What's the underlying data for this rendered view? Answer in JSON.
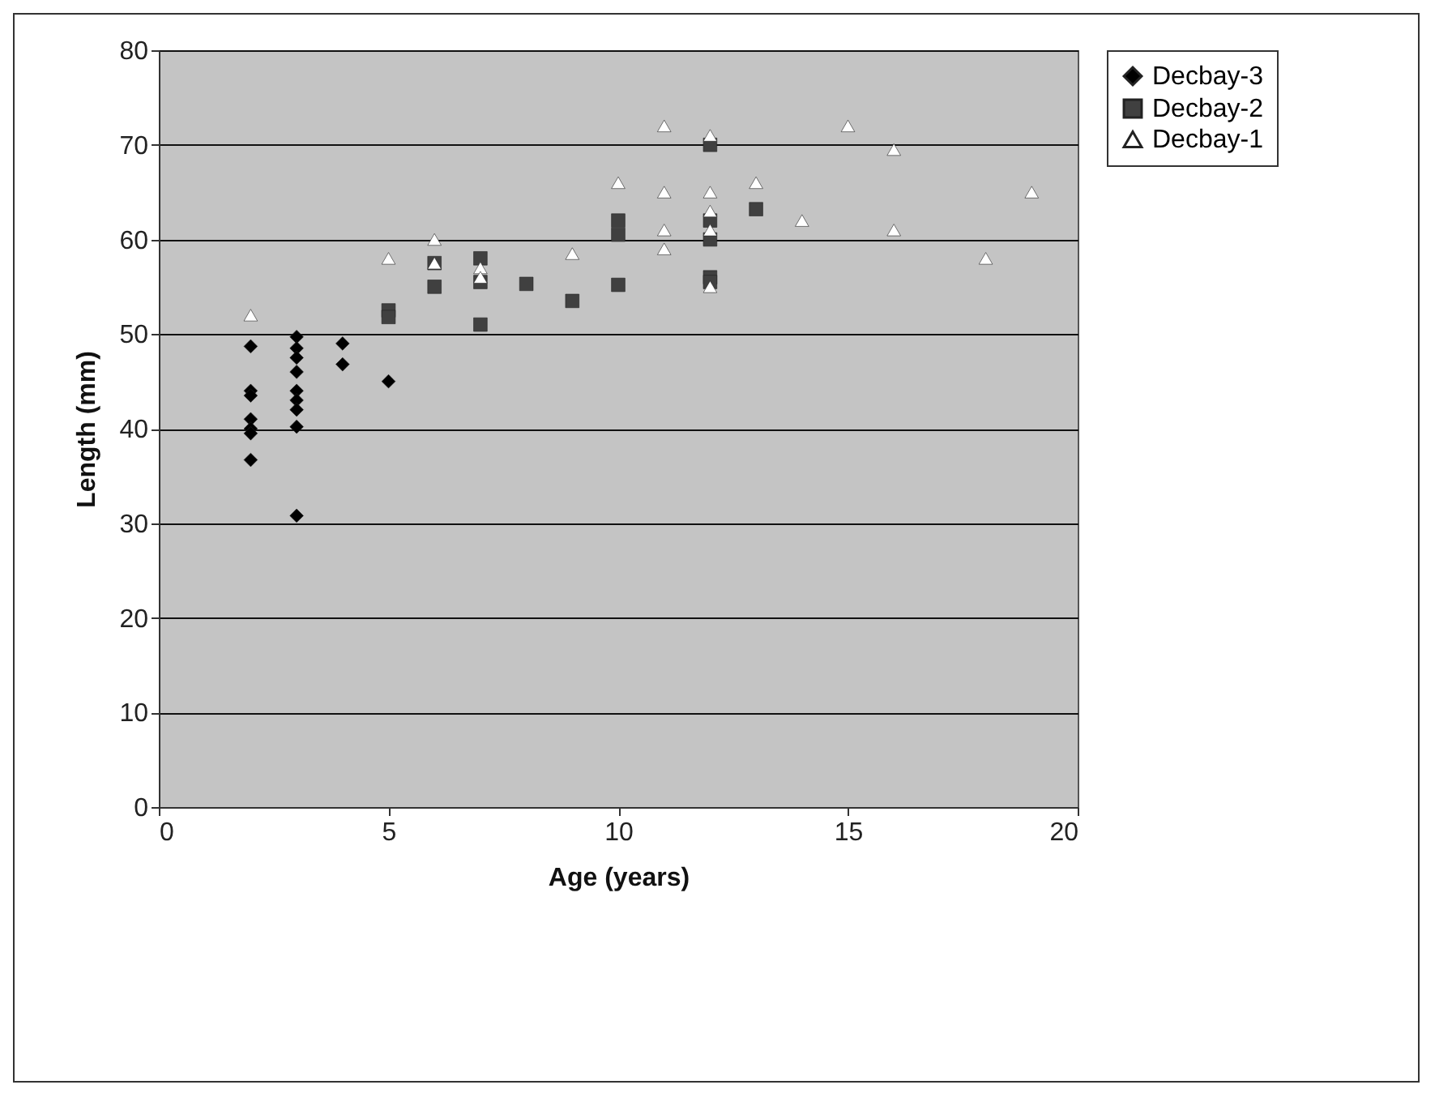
{
  "chart_data": {
    "type": "scatter",
    "xlabel": "Age (years)",
    "ylabel": "Length (mm)",
    "xlim": [
      0,
      20
    ],
    "xticks": [
      0,
      5,
      10,
      15,
      20
    ],
    "ylim": [
      0,
      80
    ],
    "yticks": [
      0,
      10,
      20,
      30,
      40,
      50,
      60,
      70,
      80
    ],
    "grid": "y",
    "legend": "right",
    "series": [
      {
        "name": "Decbay-3",
        "color": "#000000",
        "marker": "diamond",
        "x": [
          2,
          2,
          2,
          2,
          2,
          2,
          2,
          3,
          3,
          3,
          3,
          3,
          3,
          3,
          3,
          3,
          4,
          4,
          5
        ],
        "values": [
          48.7,
          44,
          43.5,
          41,
          40,
          39.5,
          36.7,
          49.7,
          48.5,
          47.5,
          46,
          44,
          43,
          42,
          40.2,
          30.8,
          49,
          46.8,
          45
        ]
      },
      {
        "name": "Decbay-2",
        "color": "#404040",
        "marker": "square",
        "x": [
          5,
          5,
          6,
          6,
          7,
          7,
          7,
          8,
          9,
          10,
          10,
          10,
          12,
          12,
          12,
          12,
          12,
          13
        ],
        "values": [
          52.5,
          51.8,
          57.5,
          55,
          58,
          55.5,
          51,
          55.3,
          53.5,
          62,
          60.5,
          55.2,
          70,
          62,
          60,
          56,
          55.5,
          63.2
        ]
      },
      {
        "name": "Decbay-1",
        "color": "#ffffff",
        "marker": "triangle",
        "x": [
          2,
          5,
          6,
          6,
          7,
          7,
          9,
          10,
          11,
          11,
          11,
          11,
          12,
          12,
          12,
          12,
          12,
          13,
          14,
          15,
          16,
          16,
          18,
          19
        ],
        "values": [
          52,
          58,
          60,
          57.5,
          57,
          56,
          58.5,
          66,
          72,
          65,
          61,
          59,
          71,
          65,
          63,
          61,
          55,
          66,
          62,
          72,
          69.5,
          61,
          58,
          65
        ]
      }
    ]
  }
}
